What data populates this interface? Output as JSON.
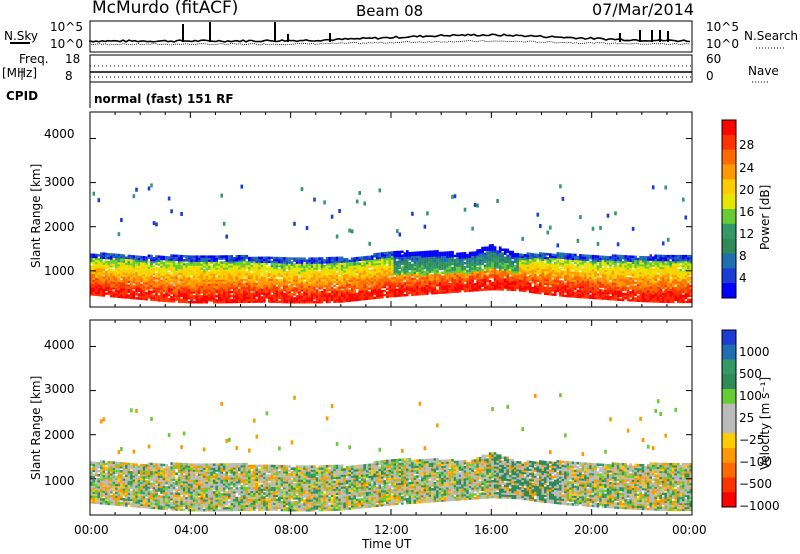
{
  "header": {
    "station": "McMurdo (fitACF)",
    "beam": "Beam 08",
    "date": "07/Mar/2014"
  },
  "summary": {
    "left_label_nsky": "N.Sky",
    "left_label_freq": "Freq.",
    "left_label_mhz": "[MHz]",
    "left_label_cpid": "CPID",
    "right_label_nsearch": "N.Search",
    "right_label_nave": "Nave",
    "noise_ticks_left": [
      "10^5",
      "10^0"
    ],
    "noise_ticks_right": [
      "10^5",
      "10^0"
    ],
    "freq_ticks": [
      "18",
      "8"
    ],
    "nave_ticks": [
      "60",
      "0"
    ],
    "cpid_text": "normal (fast) 151 RF"
  },
  "power_panel": {
    "ylabel": "Slant Range [km]",
    "yticks": [
      "4000",
      "3000",
      "2000",
      "1000"
    ],
    "colorbar_label": "Power [dB]",
    "colorbar_ticks": [
      "28",
      "24",
      "20",
      "16",
      "12",
      "8",
      "4"
    ],
    "colors": [
      "#ff0000",
      "#ff3300",
      "#ff6a00",
      "#ff9900",
      "#ffcc00",
      "#e6e600",
      "#66cc33",
      "#339966",
      "#2e8b57",
      "#1e6fb0",
      "#1a3dd6",
      "#0000ff"
    ]
  },
  "velocity_panel": {
    "ylabel": "Slant Range [km]",
    "yticks": [
      "4000",
      "3000",
      "2000",
      "1000"
    ],
    "colorbar_label": "Velocity [m s⁻¹]",
    "colorbar_ticks": [
      "1000",
      "500",
      "100",
      "25",
      "−25",
      "−100",
      "−500",
      "−1000"
    ],
    "colors": [
      "#1a3dd6",
      "#1e6fb0",
      "#339966",
      "#2e8b57",
      "#66cc33",
      "#bbbbbb",
      "#bbbbbb",
      "#ffcc00",
      "#ff9900",
      "#ff6a00",
      "#ff3300",
      "#ff0000"
    ]
  },
  "xaxis": {
    "label": "Time UT",
    "ticks": [
      "00:00",
      "04:00",
      "08:00",
      "12:00",
      "16:00",
      "20:00",
      "00:00"
    ]
  },
  "chart_data": {
    "type": "heatmap",
    "title": "McMurdo (fitACF)   Beam 08   07/Mar/2014",
    "xlabel": "Time UT",
    "ylabel": "Slant Range [km]",
    "x_hours": [
      0,
      1,
      2,
      3,
      4,
      5,
      6,
      7,
      8,
      9,
      10,
      11,
      12,
      13,
      14,
      15,
      16,
      17,
      18,
      19,
      20,
      21,
      22,
      23,
      24
    ],
    "xlim_hours": [
      0,
      24
    ],
    "ylim_km": [
      180,
      4600
    ],
    "band_lower_km": [
      600,
      550,
      500,
      450,
      420,
      420,
      430,
      440,
      420,
      420,
      440,
      500,
      560,
      600,
      640,
      680,
      720,
      700,
      620,
      560,
      520,
      480,
      450,
      430,
      430
    ],
    "band_upper_km": [
      1300,
      1300,
      1250,
      1250,
      1250,
      1250,
      1250,
      1200,
      1200,
      1200,
      1200,
      1250,
      1350,
      1350,
      1350,
      1300,
      1500,
      1300,
      1300,
      1300,
      1250,
      1250,
      1250,
      1250,
      1250
    ],
    "power_scale_db": [
      4,
      8,
      12,
      16,
      20,
      24,
      28
    ],
    "velocity_scale_ms": [
      -1000,
      -500,
      -100,
      -25,
      25,
      100,
      500,
      1000
    ],
    "power_core_db_by_hour": [
      28,
      27,
      26,
      26,
      27,
      28,
      27,
      26,
      26,
      27,
      28,
      27,
      24,
      22,
      20,
      20,
      18,
      20,
      26,
      28,
      28,
      28,
      28,
      28,
      28
    ],
    "velocity_dominant_ms_by_hour": [
      -25,
      -100,
      -100,
      -25,
      -100,
      100,
      -25,
      -100,
      -25,
      -100,
      -100,
      100,
      100,
      -100,
      -100,
      -100,
      -25,
      100,
      -100,
      100,
      -25,
      -25,
      -100,
      -25,
      -25
    ]
  }
}
